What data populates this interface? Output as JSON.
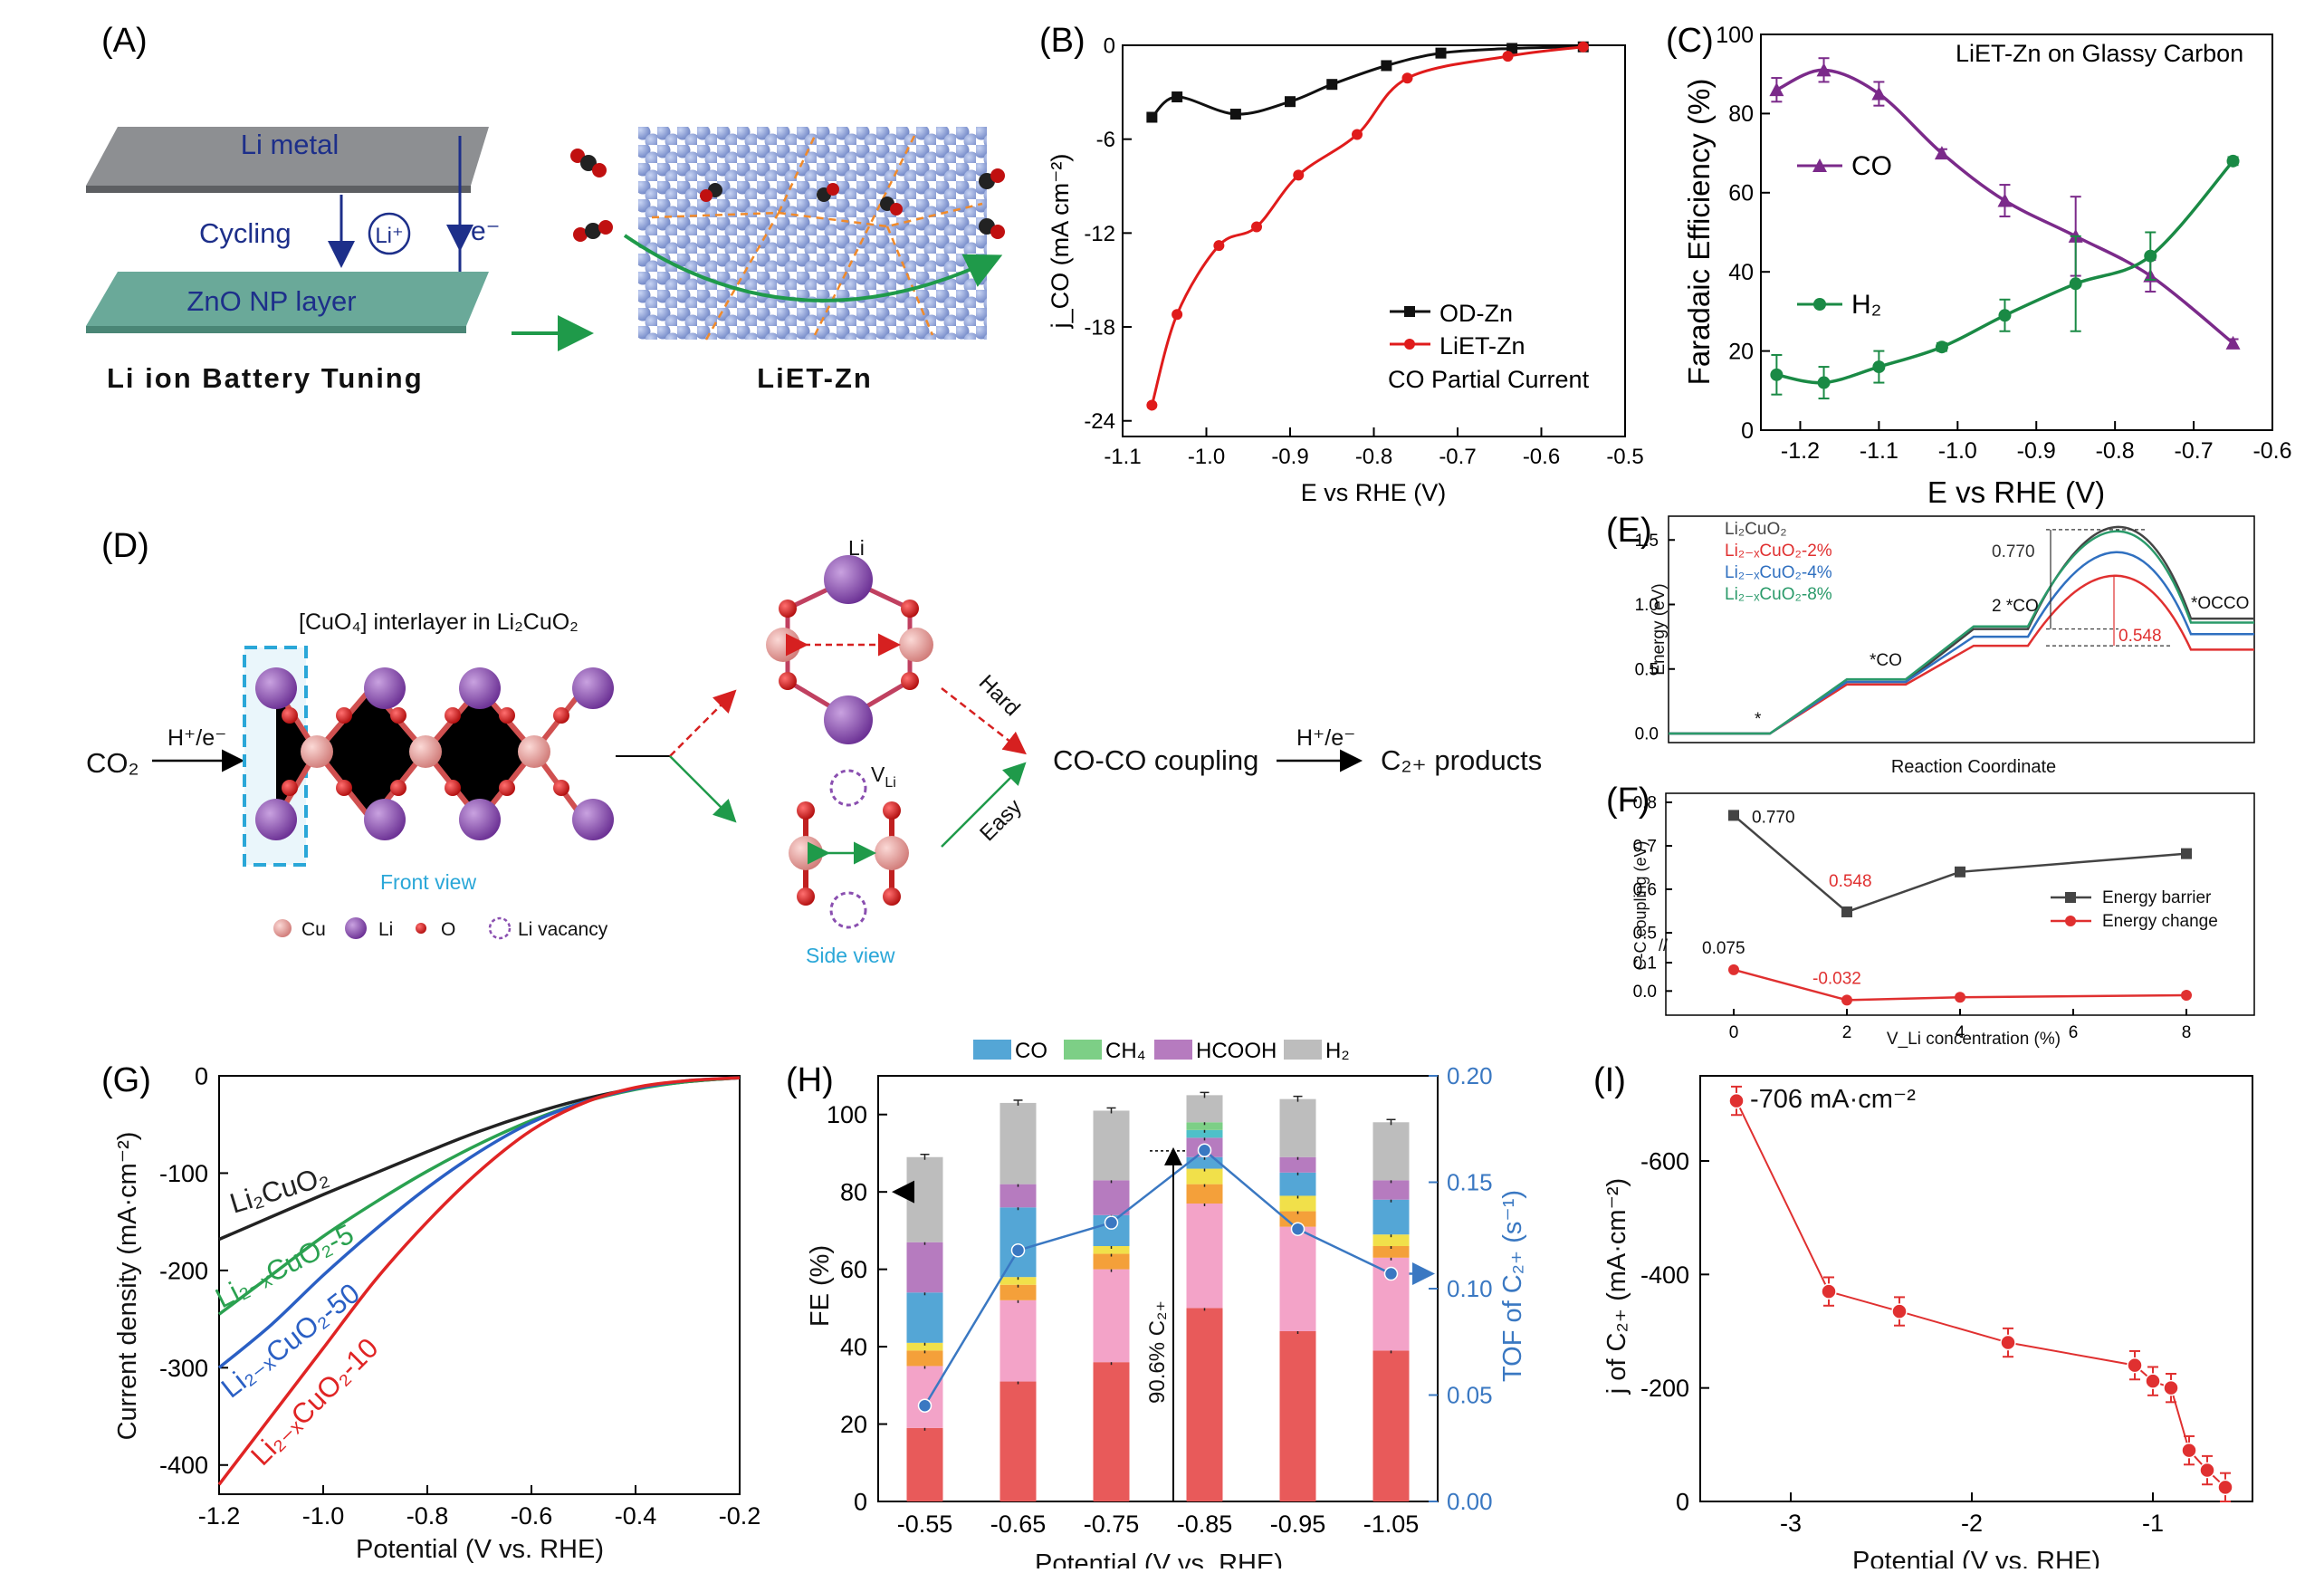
{
  "panel_labels": {
    "A": "(A)",
    "B": "(B)",
    "C": "(C)",
    "D": "(D)",
    "E": "(E)",
    "F": "(F)",
    "G": "(G)",
    "H": "(H)",
    "I": "(I)"
  },
  "panelA": {
    "li_metal": "Li metal",
    "cycling": "Cycling",
    "li_ion": "Li⁺",
    "electron": "e⁻",
    "zno_layer": "ZnO NP layer",
    "caption_left": "Li ion Battery Tuning",
    "caption_right": "LiET-Zn",
    "colors": {
      "li_plate": "#7f8184",
      "zno_plate": "#5f9f8f",
      "sphere": "#8fa3d8",
      "arrow": "#1f9a4a"
    }
  },
  "panelD": {
    "co2": "CO₂",
    "step1": "H⁺/e⁻",
    "interlayer_title": "[CuO₄] interlayer in Li₂CuO₂",
    "front_view": "Front view",
    "side_view": "Side view",
    "li_top": "Li",
    "vli": "V",
    "vli_sub": "Li",
    "hard": "Hard",
    "easy": "Easy",
    "coupling": "CO-CO coupling",
    "step2": "H⁺/e⁻",
    "products": "C₂₊ products",
    "legend": [
      "Cu",
      "Li",
      "O",
      "Li vacancy"
    ],
    "colors": {
      "cu": "#e49a97",
      "li": "#8a4fb0",
      "o": "#d61f1f",
      "cyan": "#2aa7d8"
    }
  },
  "chart_data": [
    {
      "id": "B",
      "type": "line",
      "xlabel": "E vs RHE (V)",
      "ylabel": "j_CO (mA cm⁻²)",
      "xlim": [
        -1.1,
        -0.5
      ],
      "ylim": [
        -25,
        0
      ],
      "xticks": [
        -1.1,
        -1.0,
        -0.9,
        -0.8,
        -0.7,
        -0.6,
        -0.5
      ],
      "xtick_labels": [
        "-1.1",
        "-1.0",
        "-0.9",
        "-0.8",
        "-0.7",
        "-0.6",
        "-0.5"
      ],
      "yticks": [
        0,
        -6,
        -12,
        -18,
        -24
      ],
      "ytick_labels": [
        "0",
        "-6",
        "-12",
        "-18",
        "-24"
      ],
      "annotation": "CO Partial Current",
      "series": [
        {
          "name": "OD-Zn",
          "color": "#111111",
          "marker": "square",
          "x": [
            -1.065,
            -1.035,
            -0.965,
            -0.9,
            -0.85,
            -0.785,
            -0.72,
            -0.635,
            -0.55
          ],
          "y": [
            -4.6,
            -3.3,
            -4.4,
            -3.6,
            -2.5,
            -1.3,
            -0.5,
            -0.2,
            -0.1
          ]
        },
        {
          "name": "LiET-Zn",
          "color": "#e01b1b",
          "marker": "circle",
          "x": [
            -1.065,
            -1.035,
            -0.985,
            -0.94,
            -0.89,
            -0.82,
            -0.76,
            -0.64,
            -0.55
          ],
          "y": [
            -23,
            -17.2,
            -12.8,
            -11.6,
            -8.3,
            -5.7,
            -2.1,
            -0.7,
            -0.1
          ]
        }
      ]
    },
    {
      "id": "C",
      "type": "line",
      "title": "LiET-Zn on Glassy Carbon",
      "xlabel": "E vs RHE (V)",
      "ylabel": "Faradaic Efficiency (%)",
      "xlim": [
        -1.25,
        -0.6
      ],
      "ylim": [
        0,
        100
      ],
      "xticks": [
        -1.2,
        -1.1,
        -1.0,
        -0.9,
        -0.8,
        -0.7,
        -0.6
      ],
      "xtick_labels": [
        "-1.2",
        "-1.1",
        "-1.0",
        "-0.9",
        "-0.8",
        "-0.7",
        "-0.6"
      ],
      "yticks": [
        0,
        20,
        40,
        60,
        80,
        100
      ],
      "ytick_labels": [
        "0",
        "20",
        "40",
        "60",
        "80",
        "100"
      ],
      "series": [
        {
          "name": "CO",
          "color": "#7b2a8a",
          "marker": "triangle",
          "x": [
            -1.23,
            -1.17,
            -1.1,
            -1.02,
            -0.94,
            -0.85,
            -0.755,
            -0.65
          ],
          "y": [
            86,
            91,
            85,
            70,
            58,
            49,
            39,
            22
          ],
          "err": [
            3,
            3,
            3,
            1,
            4,
            10,
            4,
            1
          ]
        },
        {
          "name": "H₂",
          "color": "#1a8a45",
          "marker": "circle",
          "x": [
            -1.23,
            -1.17,
            -1.1,
            -1.02,
            -0.94,
            -0.85,
            -0.755,
            -0.65
          ],
          "y": [
            14,
            12,
            16,
            21,
            29,
            37,
            44,
            68
          ],
          "err": [
            5,
            4,
            4,
            1,
            4,
            12,
            6,
            1
          ]
        }
      ]
    },
    {
      "id": "E",
      "type": "line",
      "xlabel": "Reaction Coordinate",
      "ylabel": "Energy (eV)",
      "ylim": [
        -0.1,
        1.65
      ],
      "yticks": [
        0,
        0.5,
        1.0,
        1.5
      ],
      "ytick_labels": [
        "0.0",
        "0.5",
        "1.0",
        "1.5"
      ],
      "states": [
        "*",
        "*CO",
        "2 *CO",
        "*OCCO"
      ],
      "annotations": {
        "barrier_high": "0.770",
        "barrier_low": "0.548"
      },
      "series": [
        {
          "name": "Li₂CuO₂",
          "color": "#444444",
          "levels": [
            0,
            0.4,
            0.81,
            0.89
          ],
          "peak": 1.58
        },
        {
          "name": "Li₂₋ₓCuO₂-2%",
          "color": "#e03030",
          "levels": [
            0,
            0.38,
            0.68,
            0.65
          ],
          "peak": 1.23
        },
        {
          "name": "Li₂₋ₓCuO₂-4%",
          "color": "#3070c0",
          "levels": [
            0,
            0.4,
            0.75,
            0.77
          ],
          "peak": 1.4
        },
        {
          "name": "Li₂₋ₓCuO₂-8%",
          "color": "#2a9a6a",
          "levels": [
            0,
            0.42,
            0.83,
            0.86
          ],
          "peak": 1.56
        }
      ]
    },
    {
      "id": "F",
      "type": "line",
      "xlabel": "V_Li concentration (%)",
      "ylabel": "C-C coupling (eV)",
      "xlim": [
        -1.2,
        9.2
      ],
      "xticks": [
        0,
        2,
        4,
        6,
        8
      ],
      "xtick_labels": [
        "0",
        "2",
        "4",
        "6",
        "8"
      ],
      "yticks_upper": [
        0.5,
        0.6,
        0.7,
        0.8
      ],
      "yticks_lower": [
        0.0,
        0.1
      ],
      "ytick_labels_upper": [
        "0.5",
        "0.6",
        "0.7",
        "0.8"
      ],
      "ytick_labels_lower": [
        "0.0",
        "0.1"
      ],
      "axis_break": true,
      "series": [
        {
          "name": "Energy barrier",
          "color": "#444444",
          "marker": "square",
          "x": [
            0,
            2,
            4,
            8
          ],
          "y": [
            0.77,
            0.548,
            0.64,
            0.682
          ]
        },
        {
          "name": "Energy change",
          "color": "#e03030",
          "marker": "circle",
          "x": [
            0,
            2,
            4,
            8
          ],
          "y": [
            0.075,
            -0.032,
            -0.022,
            -0.015
          ]
        }
      ],
      "labels": {
        "eb0": "0.770",
        "eb2": "0.548",
        "ec0": "0.075",
        "ec2": "-0.032"
      }
    },
    {
      "id": "G",
      "type": "line",
      "xlabel": "Potential (V vs. RHE)",
      "ylabel": "Current density (mA·cm⁻²)",
      "xlim": [
        -1.2,
        -0.2
      ],
      "ylim": [
        -430,
        0
      ],
      "xticks": [
        -1.2,
        -1.0,
        -0.8,
        -0.6,
        -0.4,
        -0.2
      ],
      "xtick_labels": [
        "-1.2",
        "-1.0",
        "-0.8",
        "-0.6",
        "-0.4",
        "-0.2"
      ],
      "yticks": [
        0,
        -100,
        -200,
        -300,
        -400
      ],
      "ytick_labels": [
        "0",
        "-100",
        "-200",
        "-300",
        "-400"
      ],
      "series": [
        {
          "name": "Li₂CuO₂",
          "color": "#222222",
          "x": [
            -1.2,
            -1.1,
            -1.0,
            -0.9,
            -0.8,
            -0.7,
            -0.6,
            -0.5,
            -0.4,
            -0.3,
            -0.2
          ],
          "y": [
            -168,
            -145,
            -122,
            -100,
            -78,
            -57,
            -39,
            -24,
            -13,
            -6,
            -2
          ]
        },
        {
          "name": "Li₂₋ₓCuO₂-5",
          "color": "#2aa150",
          "x": [
            -1.2,
            -1.1,
            -1.0,
            -0.9,
            -0.8,
            -0.7,
            -0.6,
            -0.5,
            -0.4,
            -0.3,
            -0.2
          ],
          "y": [
            -245,
            -205,
            -165,
            -130,
            -98,
            -70,
            -46,
            -27,
            -14,
            -6,
            -2
          ]
        },
        {
          "name": "Li₂₋ₓCuO₂-50",
          "color": "#2a5fc4",
          "x": [
            -1.2,
            -1.1,
            -1.0,
            -0.9,
            -0.8,
            -0.7,
            -0.6,
            -0.5,
            -0.4,
            -0.3,
            -0.2
          ],
          "y": [
            -300,
            -256,
            -205,
            -158,
            -115,
            -78,
            -48,
            -27,
            -13,
            -5,
            -2
          ]
        },
        {
          "name": "Li₂₋ₓCuO₂-10",
          "color": "#e02424",
          "x": [
            -1.2,
            -1.1,
            -1.0,
            -0.9,
            -0.8,
            -0.7,
            -0.6,
            -0.5,
            -0.4,
            -0.3,
            -0.2
          ],
          "y": [
            -420,
            -350,
            -280,
            -210,
            -150,
            -98,
            -56,
            -28,
            -12,
            -5,
            -2
          ]
        }
      ]
    },
    {
      "id": "H",
      "type": "bar",
      "xlabel": "Potential (V vs. RHE)",
      "ylabel": "FE (%)",
      "y2label": "TOF of C₂₊ (s⁻¹)",
      "categories": [
        "-0.55",
        "-0.65",
        "-0.75",
        "-0.85",
        "-0.95",
        "-1.05"
      ],
      "ylim": [
        0,
        110
      ],
      "y2lim": [
        0,
        0.2
      ],
      "yticks": [
        0,
        20,
        40,
        60,
        80,
        100
      ],
      "ytick_labels": [
        "0",
        "20",
        "40",
        "60",
        "80",
        "100"
      ],
      "y2ticks": [
        0,
        0.05,
        0.1,
        0.15,
        0.2
      ],
      "y2tick_labels": [
        "0.00",
        "0.05",
        "0.10",
        "0.15",
        "0.20"
      ],
      "legend": [
        "CO",
        "CH₄",
        "HCOOH",
        "H₂"
      ],
      "annotation": "90.6% C₂₊",
      "stack_colors": [
        "#e85a5a",
        "#f3a3c8",
        "#f4a03a",
        "#f1e04a",
        "#54a6d6",
        "#b67bbf",
        "#4fc0c9",
        "#7dcf86",
        "#bdbdbd"
      ],
      "stacks": [
        [
          19,
          16,
          4,
          2,
          13,
          13,
          0,
          0,
          22
        ],
        [
          31,
          21,
          4,
          2,
          18,
          6,
          0,
          0,
          21
        ],
        [
          36,
          24,
          4,
          2,
          8,
          9,
          0,
          0,
          18
        ],
        [
          50,
          27,
          5,
          4,
          3,
          5,
          2,
          2,
          7
        ],
        [
          44,
          27,
          4,
          4,
          6,
          4,
          0,
          0,
          15
        ],
        [
          39,
          24,
          3,
          3,
          9,
          5,
          0,
          0,
          15
        ]
      ],
      "tof": [
        0.045,
        0.118,
        0.131,
        0.165,
        0.128,
        0.107
      ]
    },
    {
      "id": "I",
      "type": "scatter",
      "xlabel": "Potential (V vs. RHE)",
      "ylabel": "j of C₂₊ (mA·cm⁻²)",
      "xlim": [
        -3.5,
        -0.45
      ],
      "ylim": [
        -750,
        0
      ],
      "xticks": [
        -3,
        -2,
        -1
      ],
      "xtick_labels": [
        "-3",
        "-2",
        "-1"
      ],
      "yticks": [
        0,
        -200,
        -400,
        -600
      ],
      "ytick_labels": [
        "0",
        "-200",
        "-400",
        "-600"
      ],
      "annotation": "-706 mA·cm⁻²",
      "series": [
        {
          "name": "C₂₊",
          "color": "#e03030",
          "x": [
            -3.3,
            -2.79,
            -2.4,
            -1.8,
            -1.1,
            -1.0,
            -0.9,
            -0.8,
            -0.7,
            -0.6
          ],
          "y": [
            -706,
            -370,
            -335,
            -280,
            -240,
            -212,
            -200,
            -90,
            -55,
            -25
          ]
        }
      ]
    }
  ]
}
